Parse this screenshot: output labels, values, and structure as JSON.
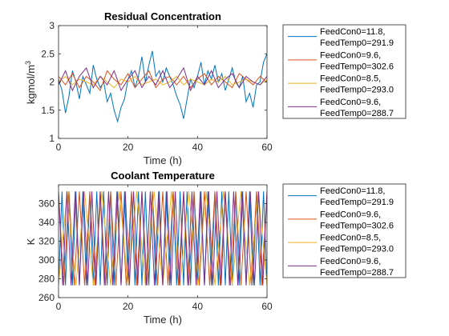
{
  "chart_data": [
    {
      "type": "line",
      "title": "Residual Concentration",
      "xlabel": "Time (h)",
      "ylabel_base": "kgmol/m",
      "ylabel_sup": "3",
      "xlim": [
        0,
        60
      ],
      "ylim": [
        1,
        3
      ],
      "xticks": [
        0,
        20,
        40,
        60
      ],
      "yticks": [
        1,
        1.5,
        2,
        2.5,
        3
      ],
      "xtick_labels": [
        "0",
        "20",
        "40",
        "60"
      ],
      "ytick_labels": [
        "1",
        "1.5",
        "2",
        "2.5",
        "3"
      ],
      "legend_position": "outside-right",
      "series": [
        {
          "name": "FeedCon0=11.8,\nFeedTemp0=291.9",
          "color": "#0072BD",
          "x": [
            0,
            1,
            2,
            3,
            4,
            5,
            6,
            7,
            8,
            9,
            10,
            11,
            12,
            13,
            14,
            15,
            16,
            17,
            18,
            19,
            20,
            21,
            22,
            23,
            24,
            25,
            26,
            27,
            28,
            29,
            30,
            31,
            32,
            33,
            34,
            35,
            36,
            37,
            38,
            39,
            40,
            41,
            42,
            43,
            44,
            45,
            46,
            47,
            48,
            49,
            50,
            51,
            52,
            53,
            54,
            55,
            56,
            57,
            58,
            59,
            60
          ],
          "y": [
            2.05,
            1.85,
            1.45,
            1.75,
            2.2,
            2.0,
            1.7,
            2.1,
            1.95,
            1.8,
            2.3,
            2.05,
            1.9,
            2.0,
            1.65,
            1.8,
            1.5,
            1.3,
            1.55,
            1.7,
            2.05,
            2.2,
            1.9,
            2.1,
            2.45,
            2.0,
            2.3,
            2.55,
            2.1,
            2.2,
            2.0,
            2.25,
            2.1,
            1.95,
            1.75,
            1.6,
            1.35,
            1.7,
            2.05,
            1.9,
            2.1,
            2.35,
            1.95,
            2.2,
            2.05,
            2.3,
            2.0,
            2.15,
            1.85,
            2.05,
            2.25,
            2.0,
            1.9,
            2.1,
            1.65,
            1.8,
            1.55,
            1.95,
            2.0,
            2.35,
            2.5
          ]
        },
        {
          "name": "FeedCon0=9.6,\nFeedTemp0=302.6",
          "color": "#D95319",
          "x": [
            0,
            2,
            4,
            6,
            8,
            10,
            12,
            14,
            16,
            18,
            20,
            22,
            24,
            26,
            28,
            30,
            32,
            34,
            36,
            38,
            40,
            42,
            44,
            46,
            48,
            50,
            52,
            54,
            56,
            58,
            60
          ],
          "y": [
            2.1,
            1.95,
            2.15,
            1.9,
            2.1,
            2.0,
            1.85,
            2.2,
            2.05,
            1.95,
            2.15,
            1.9,
            2.05,
            2.2,
            1.9,
            2.05,
            2.1,
            1.95,
            2.1,
            1.9,
            2.05,
            2.15,
            1.95,
            2.1,
            2.0,
            1.9,
            2.15,
            2.05,
            1.95,
            2.1,
            2.0
          ]
        },
        {
          "name": "FeedCon0=8.5,\nFeedTemp0=293.0",
          "color": "#EDB120",
          "x": [
            0,
            2,
            4,
            6,
            8,
            10,
            12,
            14,
            16,
            18,
            20,
            22,
            24,
            26,
            28,
            30,
            32,
            34,
            36,
            38,
            40,
            42,
            44,
            46,
            48,
            50,
            52,
            54,
            56,
            58,
            60
          ],
          "y": [
            2.0,
            2.1,
            1.95,
            2.05,
            2.0,
            1.95,
            2.1,
            2.0,
            1.9,
            2.05,
            2.0,
            2.1,
            1.95,
            2.0,
            2.05,
            1.95,
            2.0,
            2.1,
            1.95,
            2.05,
            2.0,
            1.95,
            2.05,
            2.0,
            2.1,
            1.95,
            2.0,
            2.05,
            2.0,
            1.95,
            2.05
          ]
        },
        {
          "name": "FeedCon0=9.6,\nFeedTemp0=288.7",
          "color": "#7E2F8E",
          "x": [
            0,
            2,
            4,
            6,
            8,
            10,
            12,
            14,
            16,
            18,
            20,
            22,
            24,
            26,
            28,
            30,
            32,
            34,
            36,
            38,
            40,
            42,
            44,
            46,
            48,
            50,
            52,
            54,
            56,
            58,
            60
          ],
          "y": [
            1.95,
            2.2,
            1.85,
            2.1,
            2.25,
            1.9,
            2.1,
            1.95,
            2.2,
            1.85,
            2.05,
            2.2,
            1.9,
            2.1,
            1.95,
            2.2,
            1.9,
            2.05,
            2.25,
            1.85,
            2.1,
            1.95,
            2.2,
            1.9,
            2.05,
            2.15,
            1.9,
            2.1,
            2.0,
            1.95,
            2.1
          ]
        }
      ]
    },
    {
      "type": "line",
      "title": "Coolant Temperature",
      "xlabel": "Time (h)",
      "ylabel": "K",
      "xlim": [
        0,
        60
      ],
      "ylim": [
        260,
        380
      ],
      "xticks": [
        0,
        20,
        40,
        60
      ],
      "yticks": [
        260,
        280,
        300,
        320,
        340,
        360
      ],
      "xtick_labels": [
        "0",
        "20",
        "40",
        "60"
      ],
      "ytick_labels": [
        "260",
        "280",
        "300",
        "320",
        "340",
        "360"
      ],
      "legend_position": "outside-right",
      "series": [
        {
          "name": "FeedCon0=11.8,\nFeedTemp0=291.9",
          "color": "#0072BD",
          "x": [
            0,
            1,
            2,
            3,
            4,
            5,
            6,
            7,
            8,
            9,
            10,
            11,
            12,
            13,
            14,
            15,
            16,
            17,
            18,
            19,
            20,
            21,
            22,
            23,
            24,
            25,
            26,
            27,
            28,
            29,
            30,
            31,
            32,
            33,
            34,
            35,
            36,
            37,
            38,
            39,
            40,
            41,
            42,
            43,
            44,
            45,
            46,
            47,
            48,
            49,
            50,
            51,
            52,
            53,
            54,
            55,
            56,
            57,
            58,
            59,
            60
          ],
          "y": [
            273,
            373,
            273,
            373,
            273,
            373,
            273,
            373,
            273,
            373,
            273,
            373,
            273,
            373,
            273,
            373,
            273,
            373,
            273,
            373,
            273,
            373,
            273,
            373,
            273,
            373,
            273,
            373,
            273,
            373,
            273,
            373,
            273,
            373,
            273,
            373,
            273,
            373,
            273,
            373,
            273,
            373,
            273,
            373,
            273,
            373,
            273,
            373,
            273,
            373,
            273,
            373,
            273,
            373,
            273,
            373,
            273,
            373,
            273,
            373,
            273
          ]
        },
        {
          "name": "FeedCon0=9.6,\nFeedTemp0=302.6",
          "color": "#D95319",
          "x": [
            0,
            1.5,
            3,
            4.5,
            6,
            7.5,
            9,
            10.5,
            12,
            13.5,
            15,
            16.5,
            18,
            19.5,
            21,
            22.5,
            24,
            25.5,
            27,
            28.5,
            30,
            31.5,
            33,
            34.5,
            36,
            37.5,
            39,
            40.5,
            42,
            43.5,
            45,
            46.5,
            48,
            49.5,
            51,
            52.5,
            54,
            55.5,
            57,
            58.5,
            60
          ],
          "y": [
            373,
            273,
            373,
            273,
            373,
            273,
            373,
            273,
            373,
            273,
            373,
            273,
            373,
            273,
            373,
            273,
            373,
            273,
            373,
            273,
            373,
            273,
            373,
            273,
            373,
            273,
            373,
            273,
            373,
            273,
            373,
            273,
            373,
            273,
            373,
            273,
            373,
            273,
            373,
            273,
            373
          ]
        },
        {
          "name": "FeedCon0=8.5,\nFeedTemp0=293.0",
          "color": "#EDB120",
          "x": [
            0,
            2.5,
            5,
            7.5,
            10,
            12.5,
            15,
            17.5,
            20,
            22.5,
            25,
            27.5,
            30,
            32.5,
            35,
            37.5,
            40,
            42.5,
            45,
            47.5,
            50,
            52.5,
            55,
            57.5,
            60
          ],
          "y": [
            273,
            373,
            273,
            373,
            273,
            373,
            273,
            373,
            273,
            373,
            273,
            373,
            273,
            373,
            273,
            373,
            273,
            373,
            273,
            373,
            273,
            373,
            273,
            373,
            273
          ]
        },
        {
          "name": "FeedCon0=9.6,\nFeedTemp0=288.7",
          "color": "#7E2F8E",
          "x": [
            0,
            1.2,
            2.4,
            3.6,
            4.8,
            6,
            7.2,
            8.4,
            9.6,
            10.8,
            12,
            13.2,
            14.4,
            15.6,
            16.8,
            18,
            19.2,
            20.4,
            21.6,
            22.8,
            24,
            25.2,
            26.4,
            27.6,
            28.8,
            30,
            31.2,
            32.4,
            33.6,
            34.8,
            36,
            37.2,
            38.4,
            39.6,
            40.8,
            42,
            43.2,
            44.4,
            45.6,
            46.8,
            48,
            49.2,
            50.4,
            51.6,
            52.8,
            54,
            55.2,
            56.4,
            57.6,
            58.8,
            60
          ],
          "y": [
            373,
            273,
            373,
            273,
            373,
            273,
            373,
            273,
            373,
            273,
            373,
            273,
            373,
            273,
            373,
            273,
            373,
            273,
            373,
            273,
            373,
            273,
            373,
            273,
            373,
            273,
            373,
            273,
            373,
            273,
            373,
            273,
            373,
            273,
            373,
            273,
            373,
            273,
            373,
            273,
            373,
            273,
            373,
            273,
            373,
            273,
            373,
            273,
            373,
            273,
            373
          ]
        }
      ]
    }
  ]
}
